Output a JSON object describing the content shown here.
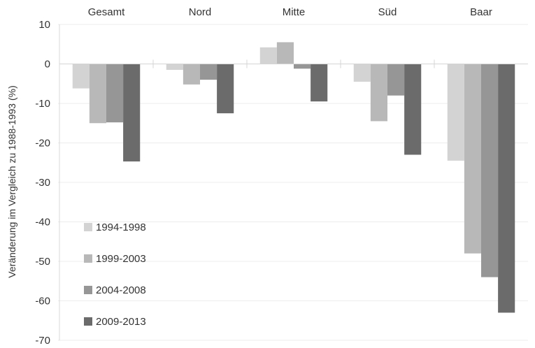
{
  "chart_data": {
    "type": "bar",
    "categories": [
      "Gesamt",
      "Nord",
      "Mitte",
      "Süd",
      "Baar"
    ],
    "series": [
      {
        "name": "1994-1998",
        "color": "#d3d3d3",
        "values": [
          -6.2,
          -1.5,
          4.2,
          -4.5,
          -24.5
        ]
      },
      {
        "name": "1999-2003",
        "color": "#b8b8b8",
        "values": [
          -15.0,
          -5.2,
          5.5,
          -14.5,
          -48.0
        ]
      },
      {
        "name": "2004-2008",
        "color": "#969696",
        "values": [
          -14.8,
          -4.0,
          -1.2,
          -8.0,
          -54.0
        ]
      },
      {
        "name": "2009-2013",
        "color": "#6b6b6b",
        "values": [
          -24.7,
          -12.5,
          -9.5,
          -23.0,
          -63.0
        ]
      }
    ],
    "ylabel": "Veränderung im Vergleich zu 1988-1993  (%)",
    "xlabel": "",
    "ylim": [
      -70,
      10
    ],
    "yticks": [
      10,
      0,
      -10,
      -20,
      -30,
      -40,
      -50,
      -60,
      -70
    ],
    "grid": true,
    "category_labels_position": "top",
    "legend_position": "bottom-left"
  }
}
